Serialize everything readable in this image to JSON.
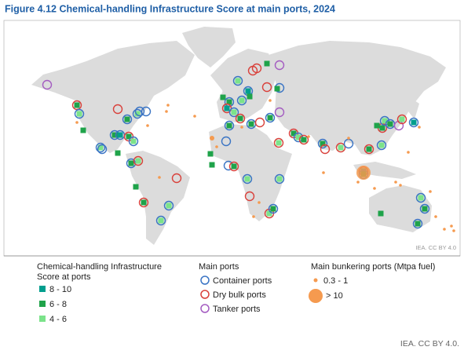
{
  "title": "Figure 4.12   Chemical-handling Infrastructure Score at main ports, 2024",
  "map_credit": "IEA. CC BY 4.0",
  "legend": {
    "score": {
      "title": "Chemical-handling Infrastructure Score at ports",
      "items": [
        "8 - 10",
        "6 - 8",
        "4 - 6"
      ]
    },
    "ports": {
      "title": "Main ports",
      "items": [
        "Container ports",
        "Dry bulk ports",
        "Tanker ports"
      ]
    },
    "bunkering": {
      "title": "Main bunkering ports (Mtpa fuel)",
      "items": [
        "0.3 - 1",
        "> 10"
      ]
    }
  },
  "footer": "IEA. CC BY 4.0."
}
